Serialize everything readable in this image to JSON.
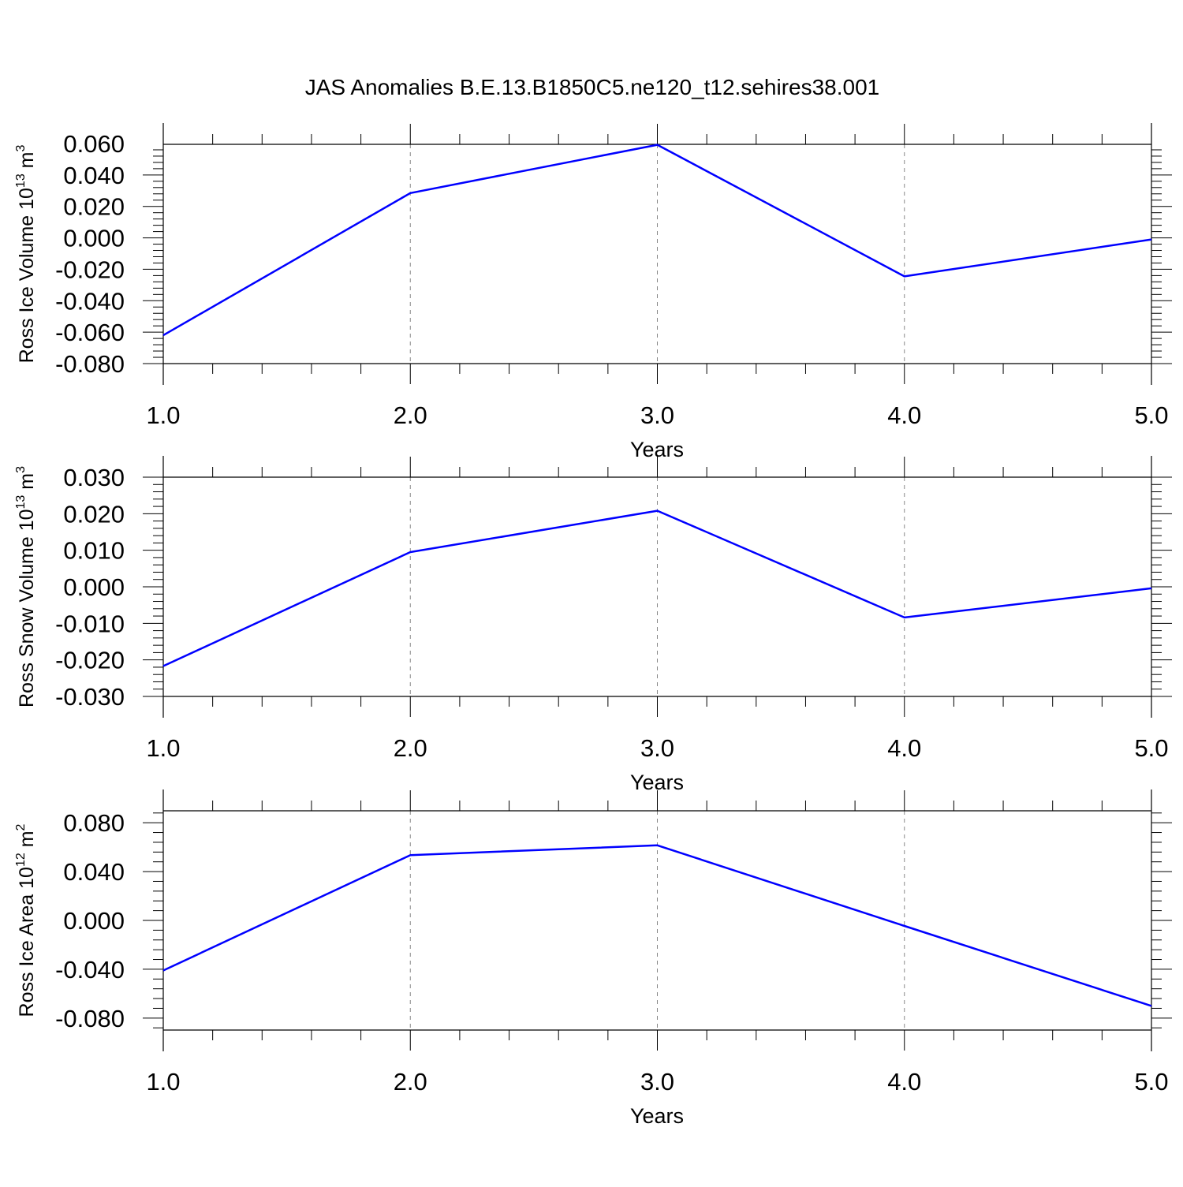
{
  "title": "JAS Anomalies B.E.13.B1850C5.ne120_t12.sehires38.001",
  "line_color": "#0000ff",
  "chart_data": [
    {
      "type": "line",
      "xlabel": "Years",
      "ylabel": {
        "text": "Ross Ice Volume 10",
        "sup": "13",
        "unit": " m",
        "unit_sup": "3"
      },
      "x": [
        1.0,
        2.0,
        3.0,
        4.0,
        5.0
      ],
      "x_ticks": [
        "1.0",
        "2.0",
        "3.0",
        "4.0",
        "5.0"
      ],
      "xlim": [
        1.0,
        5.0
      ],
      "ylim": [
        -0.08,
        0.0595
      ],
      "y_ticks": [
        "-0.080",
        "-0.060",
        "-0.040",
        "-0.020",
        "0.000",
        "0.020",
        "0.040",
        "0.060"
      ],
      "y_tick_values": [
        -0.08,
        -0.06,
        -0.04,
        -0.02,
        0.0,
        0.02,
        0.04,
        0.06
      ],
      "series": [
        {
          "values": [
            -0.062,
            0.0285,
            0.0592,
            -0.0245,
            -0.001
          ]
        }
      ]
    },
    {
      "type": "line",
      "xlabel": "Years",
      "ylabel": {
        "text": "Ross Snow Volume 10",
        "sup": "13",
        "unit": " m",
        "unit_sup": "3"
      },
      "x": [
        1.0,
        2.0,
        3.0,
        4.0,
        5.0
      ],
      "x_ticks": [
        "1.0",
        "2.0",
        "3.0",
        "4.0",
        "5.0"
      ],
      "xlim": [
        1.0,
        5.0
      ],
      "ylim": [
        -0.03,
        0.03
      ],
      "y_ticks": [
        "-0.030",
        "-0.020",
        "-0.010",
        "0.000",
        "0.010",
        "0.020",
        "0.030"
      ],
      "y_tick_values": [
        -0.03,
        -0.02,
        -0.01,
        0.0,
        0.01,
        0.02,
        0.03
      ],
      "series": [
        {
          "values": [
            -0.0217,
            0.0095,
            0.0208,
            -0.0084,
            -0.0004
          ]
        }
      ]
    },
    {
      "type": "line",
      "xlabel": "Years",
      "ylabel": {
        "text": "Ross Ice Area 10",
        "sup": "12",
        "unit": " m",
        "unit_sup": "2"
      },
      "x": [
        1.0,
        2.0,
        3.0,
        4.0,
        5.0
      ],
      "x_ticks": [
        "1.0",
        "2.0",
        "3.0",
        "4.0",
        "5.0"
      ],
      "xlim": [
        1.0,
        5.0
      ],
      "ylim": [
        -0.0898,
        0.0898
      ],
      "y_ticks": [
        "-0.080",
        "-0.040",
        "0.000",
        "0.040",
        "0.080"
      ],
      "y_tick_values": [
        -0.08,
        -0.04,
        0.0,
        0.04,
        0.08
      ],
      "series": [
        {
          "values": [
            -0.041,
            0.0535,
            0.0615,
            -0.0045,
            -0.07
          ]
        }
      ]
    }
  ]
}
